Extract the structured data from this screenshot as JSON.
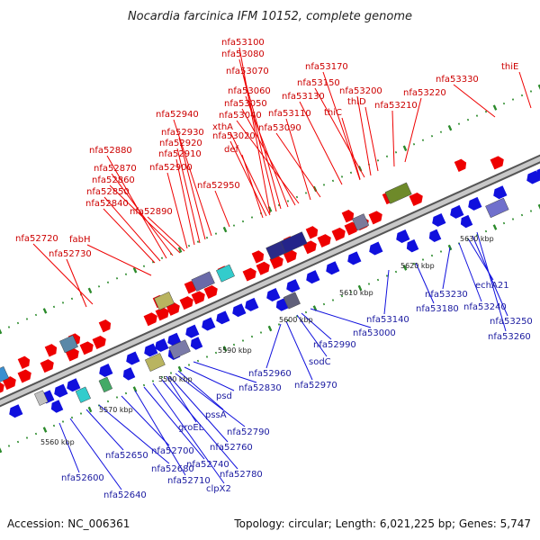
{
  "title": "Nocardia farcinica IFM 10152, complete genome",
  "footer": {
    "accession": "Accession: NC_006361",
    "summary": "Topology: circular; Length: 6,021,225 bp; Genes: 5,747"
  },
  "colors": {
    "forward": "#ee0000",
    "reverse": "#1010dd",
    "backbone": "#8a8a8a",
    "tick": "#2a8a2a",
    "label_forward": "#cc0000",
    "label_reverse": "#1a1aa0"
  },
  "kbp_marks": [
    "5560 kbp",
    "5570 kbp",
    "5580 kbp",
    "5590 kbp",
    "5600 kbp",
    "5610 kbp",
    "5620 kbp",
    "5630 kbp"
  ],
  "forward_labels": [
    "nfa53100",
    "nfa53080",
    "nfa53070",
    "nfa53170",
    "nfa53060",
    "nfa53150",
    "nfa53130",
    "nfa53200",
    "nfa53050",
    "nfa53040",
    "nfa53110",
    "nfa53020",
    "nfa53090",
    "xthA",
    "def",
    "thiC",
    "thiD",
    "nfa53210",
    "nfa53220",
    "nfa53330",
    "thiE",
    "nfa52940",
    "nfa52930",
    "nfa52920",
    "nfa52910",
    "nfa52900",
    "nfa52880",
    "nfa52870",
    "nfa52860",
    "nfa52850",
    "nfa52840",
    "nfa52890",
    "nfa52950",
    "nfa52720",
    "nfa52730",
    "fabH"
  ],
  "reverse_labels": [
    "nfa52600",
    "nfa52640",
    "nfa52650",
    "nfa52680",
    "nfa52700",
    "nfa52710",
    "nfa52740",
    "clpX2",
    "nfa52780",
    "nfa52760",
    "nfa52790",
    "groEL",
    "pssA",
    "psd",
    "nfa52830",
    "nfa52960",
    "nfa52970",
    "sodC",
    "nfa52990",
    "nfa53000",
    "nfa53140",
    "nfa53180",
    "nfa53230",
    "echA21",
    "nfa53240",
    "nfa53250",
    "nfa53260"
  ]
}
